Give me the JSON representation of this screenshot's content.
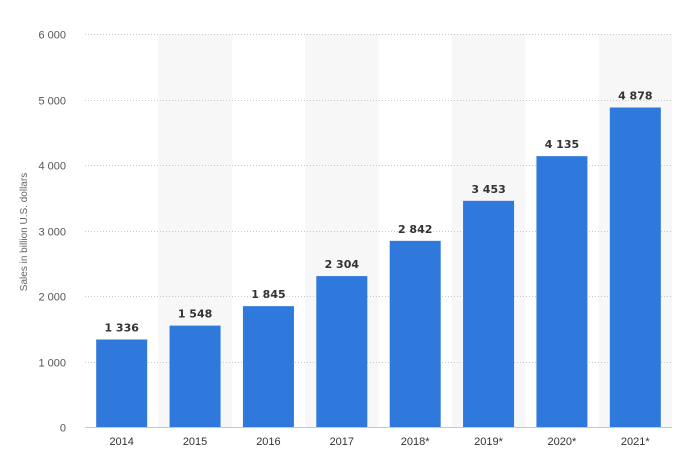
{
  "chart_data": {
    "type": "bar",
    "categories": [
      "2014",
      "2015",
      "2016",
      "2017",
      "2018*",
      "2019*",
      "2020*",
      "2021*"
    ],
    "values": [
      1336,
      1548,
      1845,
      2304,
      2842,
      3453,
      4135,
      4878
    ],
    "value_labels": [
      "1 336",
      "1 548",
      "1 845",
      "2 304",
      "2 842",
      "3 453",
      "4 135",
      "4 878"
    ],
    "ylabel": "Sales in billion U.S. dollars",
    "ylim": [
      0,
      6000
    ],
    "yticks": [
      0,
      1000,
      2000,
      3000,
      4000,
      5000,
      6000
    ],
    "ytick_labels": [
      "0",
      "1 000",
      "2 000",
      "3 000",
      "4 000",
      "5 000",
      "6 000"
    ],
    "grid": true,
    "alternating_bands": true,
    "bar_color": "#2f78dc",
    "band_color": "#f7f7f7"
  }
}
